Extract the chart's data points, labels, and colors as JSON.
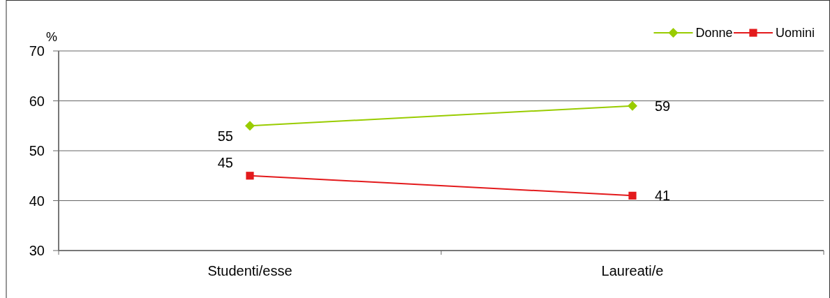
{
  "chart_data": {
    "type": "line",
    "ylabel": "%",
    "categories": [
      "Studenti/esse",
      "Laureati/e"
    ],
    "series": [
      {
        "name": "Donne",
        "color": "#99cc00",
        "values": [
          55,
          59
        ],
        "marker": "diamond"
      },
      {
        "name": "Uomini",
        "color": "#e31a1c",
        "values": [
          45,
          41
        ],
        "marker": "square"
      }
    ],
    "ylim": [
      30,
      70
    ],
    "yticks": [
      30,
      40,
      50,
      60,
      70
    ],
    "grid": "y",
    "legend": "top right",
    "data_labels": true,
    "line_style": "solid"
  }
}
